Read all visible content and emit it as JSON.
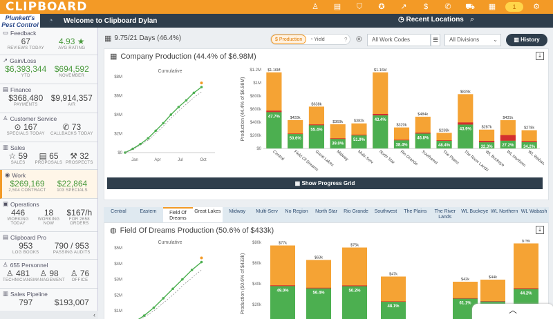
{
  "app": {
    "logo": "CLIPBOARD",
    "brand_line1": "Plunkett's",
    "brand_line2": "Pest Control",
    "welcome": "Welcome to Clipboard Dylan",
    "recent": "Recent Locations",
    "toggle_badge": "1"
  },
  "icons": {
    "top": [
      "user-icon",
      "clipboard-icon",
      "shield-icon",
      "award-icon",
      "chart-icon",
      "dollar-icon",
      "phone-icon",
      "truck-icon",
      "calendar-icon",
      "toggle-icon",
      "gear-icon"
    ]
  },
  "sidebar": {
    "feedback": {
      "title": "Feedback",
      "v1": "67",
      "l1": "REVIEWS TODAY",
      "v2": "4.93 ★",
      "l2": "AVG RATING"
    },
    "gain": {
      "title": "Gain/Loss",
      "v1": "$6,393,344",
      "l1": "YTD",
      "v2": "$694,592",
      "l2": "NOVEMBER"
    },
    "finance": {
      "title": "Finance",
      "v1": "$368,480",
      "l1": "PAYMENTS",
      "v2": "$9,914,357",
      "l2": "A/R"
    },
    "cs": {
      "title": "Customer Service",
      "v1": "167",
      "l1": "SPECIALS TODAY",
      "v2": "73",
      "l2": "CALLBACKS TODAY"
    },
    "sales": {
      "title": "Sales",
      "v1": "59",
      "l1": "SALES",
      "v2": "65",
      "l2": "PROPOSALS",
      "v3": "32",
      "l3": "PROSPECTS"
    },
    "work": {
      "title": "Work",
      "v1": "$269,169",
      "l1": "2,504 CONTRACT",
      "v2": "$22,864",
      "l2": "103 SPECIALS"
    },
    "ops": {
      "title": "Operations",
      "v1": "446",
      "l1": "WORKING TODAY",
      "v2": "18",
      "l2": "WORKING NOW",
      "v3": "$167/h",
      "l3": "FOR 2658 ORDERS"
    },
    "cbpro": {
      "title": "Clipboard Pro",
      "v1": "953",
      "l1": "LOG BOOKS",
      "v2": "790 / 953",
      "l2": "PASSING AUDITS"
    },
    "personnel": {
      "title": "655 Personnel",
      "v1": "481",
      "l1": "TECHNICIANS",
      "v2": "98",
      "l2": "MANAGEMENT",
      "v3": "76",
      "l3": "OFFICE"
    },
    "pipeline": {
      "title": "Sales Pipeline",
      "v1": "797",
      "v2": "$193,007"
    },
    "collapse": "‹"
  },
  "toolbar": {
    "days": "9.75/21 Days (46.4%)",
    "production": "Production",
    "yield": "Yield",
    "help": "?",
    "work_codes": "All Work Codes",
    "divisions": "All Divisions",
    "history": "History"
  },
  "panel1": {
    "title": "Company Production (44.4% of $6.98M)",
    "button": "Show Progress Grid"
  },
  "tabs": [
    "Central",
    "Eastern",
    "Field Of Dreams",
    "Great Lakes",
    "Midway",
    "Multi-Serv",
    "No Region",
    "North Star",
    "Rio Grande",
    "Southwest",
    "The Plains",
    "The River Lands",
    "WL Buckeye",
    "WL Northern",
    "WL Wabash"
  ],
  "panel2": {
    "title": "Field Of Dreams Production (50.6% of $433k)"
  },
  "chart_data": [
    {
      "type": "line",
      "title": "Cumulative",
      "x_ticks": [
        "Jan",
        "Apr",
        "Jul",
        "Oct"
      ],
      "y_ticks": [
        "$0",
        "$2M",
        "$4M",
        "$6M",
        "$8M"
      ],
      "ylim": [
        0,
        8
      ],
      "series": [
        {
          "values": [
            0,
            0.4,
            0.9,
            1.5,
            2.3,
            3.1,
            4.0,
            4.8,
            5.5,
            6.3,
            6.9
          ]
        },
        {
          "values": [
            0,
            0.3,
            0.8,
            1.3,
            2.0,
            2.8,
            3.6,
            4.4,
            5.1,
            5.8,
            6.4
          ]
        }
      ]
    },
    {
      "type": "bar",
      "ylabel": "Production (44.4% of $6.98M)",
      "y_ticks": [
        "$0",
        "$200k",
        "$400k",
        "$600k",
        "$800k",
        "$1M",
        "$1.2M"
      ],
      "ylim": [
        0,
        1.2
      ],
      "categories": [
        "Central",
        "Field Of Dreams",
        "Great Lakes",
        "Midway",
        "Multi-Serv",
        "North Star",
        "Rio Grande",
        "Southwest",
        "The Plains",
        "The River Lands",
        "WL Buckeye",
        "WL Northern",
        "WL Wabash"
      ],
      "totals": [
        1.16,
        0.433,
        0.638,
        0.369,
        0.382,
        1.16,
        0.32,
        0.484,
        0.238,
        0.828,
        0.287,
        0.431,
        0.278
      ],
      "labels": [
        "$1.16M",
        "$433k",
        "$638k",
        "$369k",
        "$382k",
        "$1.16M",
        "$320k",
        "$484k",
        "$238k",
        "$828k",
        "$287k",
        "$431k",
        "$278k"
      ],
      "pcts": [
        "47.7%",
        "50.6%",
        "55.4%",
        "39.0%",
        "51.9%",
        "43.4%",
        "38.4%",
        "46.8%",
        "48.4%",
        "43.9%",
        "32.3%",
        "27.2%",
        "34.2%"
      ],
      "red_frac": [
        0.02,
        0.02,
        0.02,
        0.03,
        0.03,
        0.02,
        0.03,
        0.03,
        0.04,
        0.04,
        0.08,
        0.2,
        0.06
      ]
    },
    {
      "type": "line",
      "title": "Cumulative",
      "y_ticks": [
        "$0",
        "$1M",
        "$2M",
        "$3M",
        "$4M",
        "$5M"
      ],
      "ylim": [
        0,
        5
      ],
      "series": [
        {
          "values": [
            0,
            0.3,
            0.7,
            1.2,
            1.8,
            2.4,
            3.0,
            3.6,
            4.1
          ]
        },
        {
          "values": [
            0,
            0.25,
            0.6,
            1.0,
            1.5,
            2.0,
            2.6,
            3.1,
            3.6
          ]
        }
      ]
    },
    {
      "type": "bar",
      "ylabel": "Production (50.6% of $433k)",
      "y_ticks": [
        "$0",
        "$20k",
        "$40k",
        "$60k",
        "$80k"
      ],
      "ylim": [
        0,
        80
      ],
      "totals": [
        77,
        63,
        75,
        47,
        0,
        42,
        44,
        79
      ],
      "labels": [
        "$77k",
        "$63k",
        "$75k",
        "$47k",
        "",
        "$42k",
        "$44k",
        "$79k"
      ],
      "pcts": [
        "49.0%",
        "56.4%",
        "50.2%",
        "48.1%",
        "",
        "61.1%",
        "52.0%",
        "44.2%"
      ]
    }
  ]
}
